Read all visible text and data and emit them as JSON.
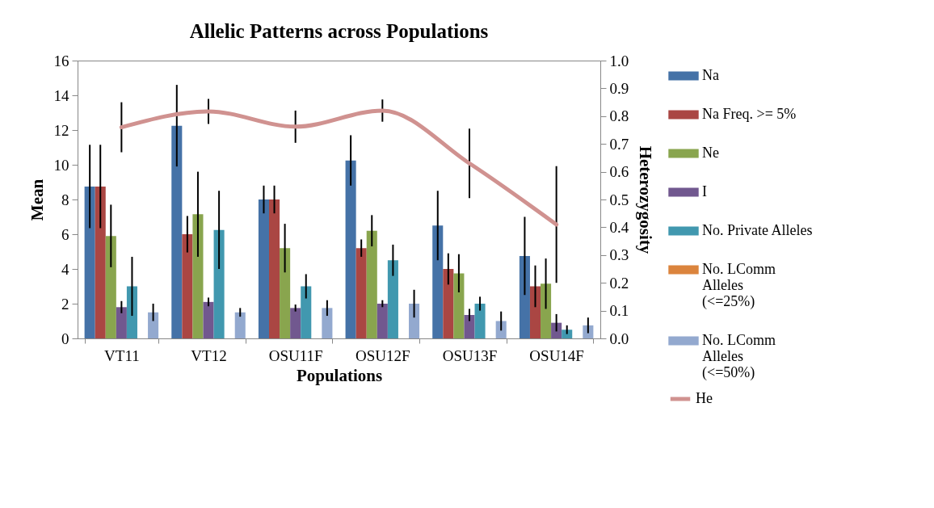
{
  "chart_data": {
    "type": "bar",
    "title": "Allelic Patterns across Populations",
    "xlabel": "Populations",
    "ylabel": "Mean",
    "y2label": "Heterozygosity",
    "categories": [
      "VT11",
      "VT12",
      "OSU11F",
      "OSU12F",
      "OSU13F",
      "OSU14F"
    ],
    "ylim": [
      0,
      16
    ],
    "yticks": [
      0,
      2,
      4,
      6,
      8,
      10,
      12,
      14,
      16
    ],
    "y2lim": [
      0,
      1
    ],
    "y2ticks": [
      {
        "value": 0,
        "label": "0.0"
      },
      0.1,
      0.2,
      0.3,
      0.4,
      0.5,
      0.6,
      0.7,
      0.8,
      0.9,
      {
        "value": 1,
        "label": "1.0"
      }
    ],
    "grid": false,
    "legend": "right",
    "series": [
      {
        "name": "Na",
        "color": "#4572a7",
        "values": [
          8.75,
          12.25,
          8.0,
          10.25,
          6.5,
          4.75
        ],
        "errors": [
          2.4,
          2.35,
          0.8,
          1.45,
          2.0,
          2.25
        ]
      },
      {
        "name": "Na Freq. >= 5%",
        "color": "#aa4643",
        "values": [
          8.75,
          6.0,
          8.0,
          5.2,
          4.0,
          3.0
        ],
        "errors": [
          2.4,
          1.05,
          0.8,
          0.5,
          0.9,
          1.2
        ]
      },
      {
        "name": "Ne",
        "color": "#89a54e",
        "values": [
          5.9,
          7.15,
          5.2,
          6.2,
          3.75,
          3.15
        ],
        "errors": [
          1.8,
          2.45,
          1.4,
          0.9,
          1.1,
          1.45
        ]
      },
      {
        "name": "I",
        "color": "#71588f",
        "values": [
          1.8,
          2.1,
          1.75,
          2.0,
          1.35,
          0.9
        ],
        "errors": [
          0.35,
          0.25,
          0.2,
          0.2,
          0.35,
          0.5
        ]
      },
      {
        "name": "No. Private Alleles",
        "color": "#4198af",
        "values": [
          3.0,
          6.25,
          3.0,
          4.5,
          2.0,
          0.5
        ],
        "errors": [
          1.7,
          2.25,
          0.7,
          0.9,
          0.4,
          0.25
        ]
      },
      {
        "name": "No. LComm Alleles (<=25%)",
        "color": "#db843d",
        "values": [
          0,
          0,
          0,
          0,
          0,
          0
        ]
      },
      {
        "name": "No. LComm Alleles (<=50%)",
        "color": "#93a9cf",
        "values": [
          1.5,
          1.5,
          1.75,
          2.0,
          1.0,
          0.75
        ],
        "errors": [
          0.5,
          0.25,
          0.45,
          0.8,
          0.55,
          0.45
        ]
      },
      {
        "name": "He",
        "type": "line",
        "axis": "y2",
        "color": "#d09290",
        "values": [
          0.76,
          0.817,
          0.762,
          0.82,
          0.63,
          0.41
        ],
        "errors": [
          0.09,
          0.045,
          0.058,
          0.04,
          0.125,
          0.21
        ]
      }
    ]
  }
}
